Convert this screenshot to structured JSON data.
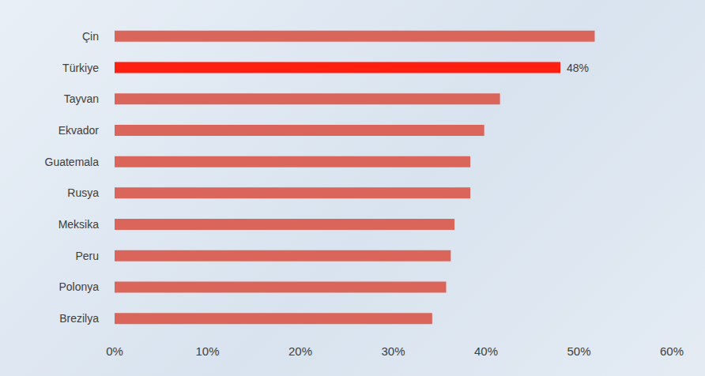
{
  "chart_data": {
    "type": "bar",
    "orientation": "horizontal",
    "categories": [
      "Çin",
      "Türkiye",
      "Tayvan",
      "Ekvador",
      "Guatemala",
      "Rusya",
      "Meksika",
      "Peru",
      "Polonya",
      "Brezilya"
    ],
    "values": [
      51.7,
      48,
      41.5,
      39.8,
      38.3,
      38.3,
      36.6,
      36.2,
      35.7,
      34.2
    ],
    "value_labels": [
      null,
      "48%",
      null,
      null,
      null,
      null,
      null,
      null,
      null,
      null
    ],
    "colors": [
      "#d9655b",
      "#ff1f10",
      "#d9655b",
      "#d9655b",
      "#d9655b",
      "#d9655b",
      "#d9655b",
      "#d9655b",
      "#d9655b",
      "#d9655b"
    ],
    "xlim": [
      0,
      60
    ],
    "xticks": [
      {
        "value": 0,
        "label": "0%"
      },
      {
        "value": 10,
        "label": "10%"
      },
      {
        "value": 20,
        "label": "20%"
      },
      {
        "value": 30,
        "label": "30%"
      },
      {
        "value": 40,
        "label": "40%"
      },
      {
        "value": 50,
        "label": "50%"
      },
      {
        "value": 60,
        "label": "60%"
      }
    ],
    "grid": false
  }
}
